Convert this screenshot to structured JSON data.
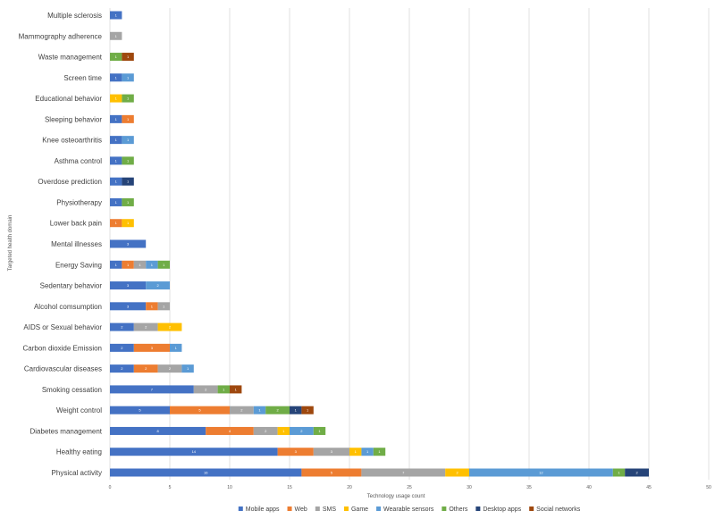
{
  "chart_data": {
    "type": "bar",
    "orientation": "horizontal",
    "stacked": true,
    "xlabel": "Technology usage  count",
    "ylabel": "Targeted health domain",
    "xlim": [
      0,
      50
    ],
    "x_ticks": [
      "0",
      "5",
      "10",
      "15",
      "20",
      "25",
      "30",
      "35",
      "40",
      "45",
      "50"
    ],
    "grid": true,
    "legend_position": "bottom",
    "categories": [
      "Multiple sclerosis",
      "Mammography adherence",
      "Waste management",
      "Screen time",
      "Educational behavior",
      "Sleeping behavior",
      "Knee osteoarthritis",
      "Asthma control",
      "Overdose prediction",
      "Physiotherapy",
      "Lower back pain",
      "Mental illnesses",
      "Energy Saving",
      "Sedentary behavior",
      "Alcohol comsumption",
      "AIDS or Sexual behavior",
      "Carbon dioxide Emission",
      "Cardiovascular diseases",
      "Smoking cessation",
      "Weight control",
      "Diabetes management",
      "Healthy eating",
      "Physical activity"
    ],
    "series": [
      {
        "name": "Mobile apps",
        "color": "#4472C4",
        "values": [
          1,
          0,
          0,
          1,
          0,
          1,
          1,
          1,
          1,
          1,
          0,
          3,
          1,
          3,
          3,
          2,
          2,
          2,
          7,
          5,
          8,
          14,
          16
        ]
      },
      {
        "name": "Web",
        "color": "#ED7D31",
        "values": [
          0,
          0,
          0,
          0,
          0,
          1,
          0,
          0,
          0,
          0,
          1,
          0,
          1,
          0,
          1,
          0,
          3,
          2,
          0,
          5,
          4,
          3,
          5
        ]
      },
      {
        "name": "SMS",
        "color": "#A5A5A5",
        "values": [
          0,
          1,
          0,
          0,
          0,
          0,
          0,
          0,
          0,
          0,
          0,
          0,
          1,
          0,
          1,
          2,
          0,
          2,
          2,
          2,
          2,
          3,
          7
        ]
      },
      {
        "name": "Game",
        "color": "#FFC000",
        "values": [
          0,
          0,
          0,
          0,
          1,
          0,
          0,
          0,
          0,
          0,
          1,
          0,
          0,
          0,
          0,
          2,
          0,
          0,
          0,
          0,
          1,
          1,
          2
        ]
      },
      {
        "name": "Wearable sensors",
        "color": "#5B9BD5",
        "values": [
          0,
          0,
          0,
          1,
          0,
          0,
          1,
          0,
          0,
          0,
          0,
          0,
          1,
          2,
          0,
          0,
          1,
          1,
          0,
          1,
          2,
          1,
          12
        ]
      },
      {
        "name": "Others",
        "color": "#70AD47",
        "values": [
          0,
          0,
          1,
          0,
          1,
          0,
          0,
          1,
          0,
          1,
          0,
          0,
          1,
          0,
          0,
          0,
          0,
          0,
          1,
          2,
          1,
          1,
          1
        ]
      },
      {
        "name": "Desktop apps",
        "color": "#264478",
        "values": [
          0,
          0,
          0,
          0,
          0,
          0,
          0,
          0,
          1,
          0,
          0,
          0,
          0,
          0,
          0,
          0,
          0,
          0,
          0,
          1,
          0,
          0,
          2
        ]
      },
      {
        "name": "Social networks",
        "color": "#9E480E",
        "values": [
          0,
          0,
          1,
          0,
          0,
          0,
          0,
          0,
          0,
          0,
          0,
          0,
          0,
          0,
          0,
          0,
          0,
          0,
          1,
          1,
          0,
          0,
          0
        ]
      }
    ]
  }
}
